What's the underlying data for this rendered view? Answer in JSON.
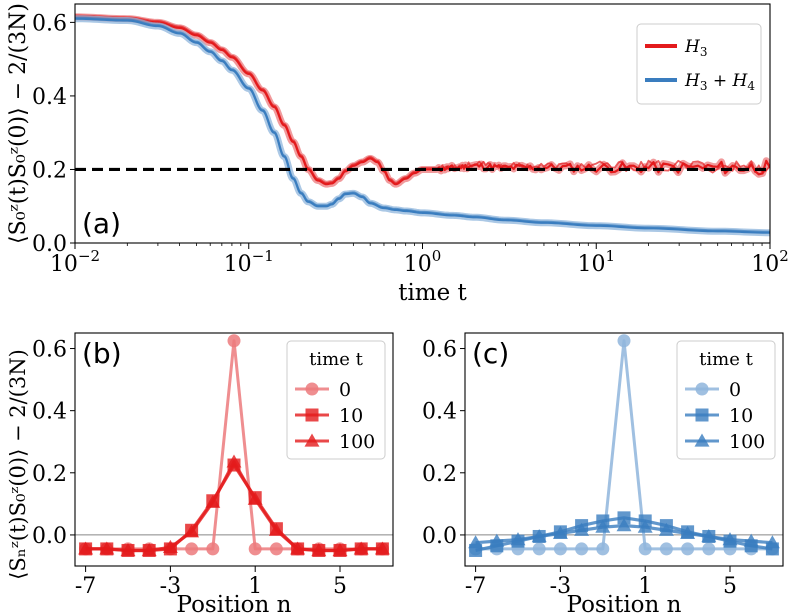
{
  "colors": {
    "red": "#e31a1c",
    "red_light": "#ec7a7c",
    "blue": "#3a7dbf",
    "blue_light": "#8fb5dc",
    "black": "#000000"
  },
  "chart_data": [
    {
      "id": "a",
      "type": "line",
      "panel_label": "(a)",
      "xscale": "log",
      "xlim": [
        0.01,
        100
      ],
      "ylim": [
        0.0,
        0.65
      ],
      "xlabel": "time t",
      "ylabel": "⟨S₀ᶻ(t)S₀ᶻ(0)⟩ − 2/(3N)",
      "xticks": [
        {
          "value": 0.01,
          "base": "10",
          "exp": "−2"
        },
        {
          "value": 0.1,
          "base": "10",
          "exp": "−1"
        },
        {
          "value": 1,
          "base": "10",
          "exp": "0"
        },
        {
          "value": 10,
          "base": "10",
          "exp": "1"
        },
        {
          "value": 100,
          "base": "10",
          "exp": "2"
        }
      ],
      "yticks": [
        {
          "value": 0.0,
          "label": "0.0"
        },
        {
          "value": 0.2,
          "label": "0.2"
        },
        {
          "value": 0.4,
          "label": "0.4"
        },
        {
          "value": 0.6,
          "label": "0.6"
        }
      ],
      "reference_line": {
        "y": 0.2,
        "style": "dashed"
      },
      "legend": {
        "position": "top-right"
      },
      "series": [
        {
          "name": "H3",
          "legend_base": "H",
          "legend_sub": "3",
          "legend_rest": "",
          "color": "#e31a1c",
          "noisy": true,
          "x": [
            0.01,
            0.02,
            0.03,
            0.04,
            0.05,
            0.06,
            0.07,
            0.08,
            0.1,
            0.12,
            0.14,
            0.16,
            0.18,
            0.2,
            0.22,
            0.25,
            0.28,
            0.3,
            0.33,
            0.36,
            0.4,
            0.45,
            0.5,
            0.55,
            0.6,
            0.65,
            0.7,
            0.8,
            0.9,
            1.0,
            1.2,
            1.5,
            2,
            3,
            5,
            10,
            20,
            50,
            100
          ],
          "y": [
            0.615,
            0.61,
            0.6,
            0.585,
            0.565,
            0.545,
            0.525,
            0.505,
            0.46,
            0.415,
            0.37,
            0.32,
            0.275,
            0.235,
            0.2,
            0.17,
            0.16,
            0.162,
            0.175,
            0.195,
            0.21,
            0.22,
            0.23,
            0.22,
            0.195,
            0.17,
            0.16,
            0.175,
            0.19,
            0.2,
            0.2,
            0.205,
            0.21,
            0.205,
            0.205,
            0.205,
            0.205,
            0.205,
            0.205
          ]
        },
        {
          "name": "H3 + H4",
          "legend_base": "H",
          "legend_sub": "3",
          "legend_rest": "+ H",
          "legend_sub2": "4",
          "color": "#3a7dbf",
          "noisy": false,
          "x": [
            0.01,
            0.02,
            0.03,
            0.04,
            0.05,
            0.06,
            0.07,
            0.08,
            0.1,
            0.12,
            0.14,
            0.16,
            0.18,
            0.2,
            0.22,
            0.25,
            0.28,
            0.3,
            0.33,
            0.36,
            0.4,
            0.45,
            0.5,
            0.6,
            0.7,
            0.8,
            1.0,
            1.5,
            2,
            3,
            5,
            10,
            20,
            50,
            100
          ],
          "y": [
            0.61,
            0.605,
            0.59,
            0.57,
            0.545,
            0.52,
            0.495,
            0.47,
            0.42,
            0.36,
            0.3,
            0.235,
            0.175,
            0.135,
            0.112,
            0.1,
            0.1,
            0.105,
            0.12,
            0.133,
            0.135,
            0.125,
            0.108,
            0.095,
            0.09,
            0.087,
            0.082,
            0.075,
            0.07,
            0.062,
            0.055,
            0.047,
            0.04,
            0.032,
            0.028
          ]
        }
      ]
    },
    {
      "id": "b",
      "type": "line",
      "panel_label": "(b)",
      "xlim": [
        -7.5,
        7.5
      ],
      "ylim": [
        -0.1,
        0.65
      ],
      "xlabel": "Position n",
      "ylabel": "⟨Sₙᶻ(t)S₀ᶻ(0)⟩ − 2/(3N)",
      "xticks": [
        {
          "value": -7,
          "label": "-7"
        },
        {
          "value": -3,
          "label": "-3"
        },
        {
          "value": 1,
          "label": "1"
        },
        {
          "value": 5,
          "label": "5"
        }
      ],
      "yticks": [
        {
          "value": 0.0,
          "label": "0.0"
        },
        {
          "value": 0.2,
          "label": "0.2"
        },
        {
          "value": 0.4,
          "label": "0.4"
        },
        {
          "value": 0.6,
          "label": "0.6"
        }
      ],
      "legend": {
        "position": "top-right",
        "title": "time t"
      },
      "series": [
        {
          "name": "0",
          "marker": "circle",
          "color": "#ec7a7c",
          "x": [
            -7,
            -6,
            -5,
            -4,
            -3,
            -2,
            -1,
            0,
            1,
            2,
            3,
            4,
            5,
            6,
            7
          ],
          "y": [
            -0.045,
            -0.045,
            -0.045,
            -0.045,
            -0.045,
            -0.045,
            -0.045,
            0.625,
            -0.045,
            -0.045,
            -0.045,
            -0.045,
            -0.045,
            -0.045,
            -0.045
          ]
        },
        {
          "name": "10",
          "marker": "square",
          "color": "#e31a1c",
          "x": [
            -7,
            -6,
            -5,
            -4,
            -3,
            -2,
            -1,
            0,
            1,
            2,
            3,
            4,
            5,
            6,
            7
          ],
          "y": [
            -0.045,
            -0.045,
            -0.05,
            -0.05,
            -0.045,
            0.015,
            0.11,
            0.225,
            0.12,
            0.02,
            -0.045,
            -0.05,
            -0.05,
            -0.045,
            -0.045
          ]
        },
        {
          "name": "100",
          "marker": "triangle",
          "color": "#e31a1c",
          "x": [
            -7,
            -6,
            -5,
            -4,
            -3,
            -2,
            -1,
            0,
            1,
            2,
            3,
            4,
            5,
            6,
            7
          ],
          "y": [
            -0.045,
            -0.045,
            -0.05,
            -0.05,
            -0.04,
            0.01,
            0.105,
            0.235,
            0.115,
            0.015,
            -0.045,
            -0.05,
            -0.05,
            -0.045,
            -0.045
          ]
        }
      ]
    },
    {
      "id": "c",
      "type": "line",
      "panel_label": "(c)",
      "xlim": [
        -7.5,
        7.5
      ],
      "ylim": [
        -0.1,
        0.65
      ],
      "xlabel": "Position n",
      "ylabel": "",
      "xticks": [
        {
          "value": -7,
          "label": "-7"
        },
        {
          "value": -3,
          "label": "-3"
        },
        {
          "value": 1,
          "label": "1"
        },
        {
          "value": 5,
          "label": "5"
        }
      ],
      "yticks": [
        {
          "value": 0.0,
          "label": "0.0"
        },
        {
          "value": 0.2,
          "label": "0.2"
        },
        {
          "value": 0.4,
          "label": "0.4"
        },
        {
          "value": 0.6,
          "label": "0.6"
        }
      ],
      "legend": {
        "position": "top-right",
        "title": "time t"
      },
      "series": [
        {
          "name": "0",
          "marker": "circle",
          "color": "#8fb5dc",
          "x": [
            -7,
            -6,
            -5,
            -4,
            -3,
            -2,
            -1,
            0,
            1,
            2,
            3,
            4,
            5,
            6,
            7
          ],
          "y": [
            -0.045,
            -0.045,
            -0.045,
            -0.045,
            -0.045,
            -0.045,
            -0.045,
            0.625,
            -0.045,
            -0.045,
            -0.045,
            -0.045,
            -0.045,
            -0.045,
            -0.045
          ]
        },
        {
          "name": "10",
          "marker": "square",
          "color": "#3a7dbf",
          "x": [
            -7,
            -6,
            -5,
            -4,
            -3,
            -2,
            -1,
            0,
            1,
            2,
            3,
            4,
            5,
            6,
            7
          ],
          "y": [
            -0.05,
            -0.035,
            -0.02,
            -0.005,
            0.01,
            0.03,
            0.045,
            0.055,
            0.045,
            0.03,
            0.01,
            -0.005,
            -0.02,
            -0.035,
            -0.045
          ]
        },
        {
          "name": "100",
          "marker": "triangle",
          "color": "#3a7dbf",
          "x": [
            -7,
            -6,
            -5,
            -4,
            -3,
            -2,
            -1,
            0,
            1,
            2,
            3,
            4,
            5,
            6,
            7
          ],
          "y": [
            -0.025,
            -0.02,
            -0.015,
            -0.005,
            0.005,
            0.015,
            0.025,
            0.03,
            0.025,
            0.015,
            0.005,
            -0.005,
            -0.015,
            -0.02,
            -0.025
          ]
        }
      ]
    }
  ]
}
